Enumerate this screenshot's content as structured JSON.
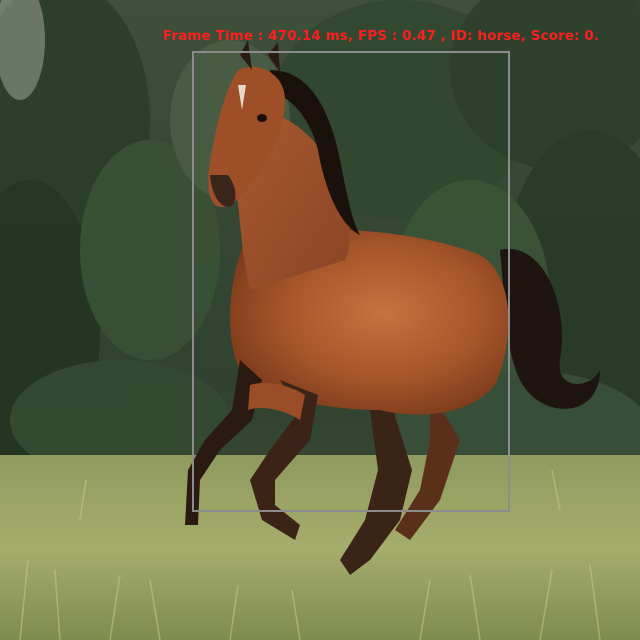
{
  "detection": {
    "label": "Frame Time : 470.14 ms, FPS : 0.47 , ID: horse, Score: 0.",
    "frame_time_ms": 470.14,
    "fps": 0.47,
    "class_id": "horse",
    "box_color": "#8c8c8c",
    "text_color": "#ff1e1e"
  },
  "scene": {
    "subject": "horse-photo",
    "background": "forest-and-meadow"
  }
}
